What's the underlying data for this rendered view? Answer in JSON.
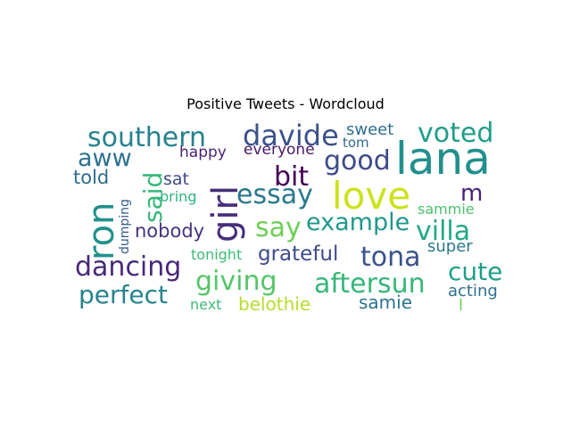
{
  "title": "Positive Tweets - Wordcloud",
  "words": [
    {
      "text": "lana",
      "color": "#21908d"
    },
    {
      "text": "love",
      "color": "#cde11d"
    },
    {
      "text": "girl",
      "color": "#472d7b"
    },
    {
      "text": "ron",
      "color": "#21918c"
    },
    {
      "text": "davide",
      "color": "#3b528b"
    },
    {
      "text": "southern",
      "color": "#26828e"
    },
    {
      "text": "voted",
      "color": "#1f9e89"
    },
    {
      "text": "good",
      "color": "#3e4a89"
    },
    {
      "text": "bit",
      "color": "#440154"
    },
    {
      "text": "essay",
      "color": "#2a788e"
    },
    {
      "text": "aww",
      "color": "#2c728e"
    },
    {
      "text": "said",
      "color": "#35b779"
    },
    {
      "text": "m",
      "color": "#482475"
    },
    {
      "text": "say",
      "color": "#6ece58"
    },
    {
      "text": "example",
      "color": "#1f988b"
    },
    {
      "text": "villa",
      "color": "#22a884"
    },
    {
      "text": "dancing",
      "color": "#482878"
    },
    {
      "text": "tona",
      "color": "#3b528b"
    },
    {
      "text": "grateful",
      "color": "#3e4c8a"
    },
    {
      "text": "cute",
      "color": "#1fa088"
    },
    {
      "text": "perfect",
      "color": "#26838e"
    },
    {
      "text": "giving",
      "color": "#54c568"
    },
    {
      "text": "aftersun",
      "color": "#35b779"
    },
    {
      "text": "nobody",
      "color": "#46327e"
    },
    {
      "text": "told",
      "color": "#2f6c8e"
    },
    {
      "text": "sat",
      "color": "#3e4989"
    },
    {
      "text": "sweet",
      "color": "#2e6e8e"
    },
    {
      "text": "tom",
      "color": "#31688e"
    },
    {
      "text": "happy",
      "color": "#482475"
    },
    {
      "text": "everyone",
      "color": "#48186a"
    },
    {
      "text": "bring",
      "color": "#2db27d"
    },
    {
      "text": "dumping",
      "color": "#365c8d"
    },
    {
      "text": "tonight",
      "color": "#3dbc74"
    },
    {
      "text": "sammie",
      "color": "#4ac16d"
    },
    {
      "text": "super",
      "color": "#2a788e"
    },
    {
      "text": "acting",
      "color": "#2d708e"
    },
    {
      "text": "samie",
      "color": "#2c728e"
    },
    {
      "text": "belothie",
      "color": "#b5de2b"
    },
    {
      "text": "next",
      "color": "#3dbc74"
    },
    {
      "text": "l",
      "color": "#6ccd5a"
    }
  ]
}
